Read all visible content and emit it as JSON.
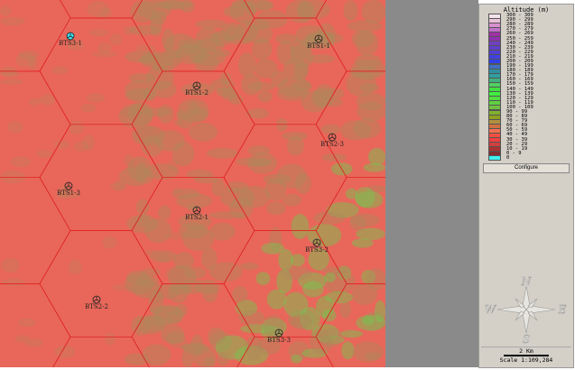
{
  "legend": {
    "title": "Altitude (m)",
    "configure_label": "Configure",
    "entries": [
      {
        "label": "300 - 309",
        "color": "#f3e2ea"
      },
      {
        "label": "290 - 299",
        "color": "#e8c0d8"
      },
      {
        "label": "280 - 289",
        "color": "#d890d0"
      },
      {
        "label": "270 - 279",
        "color": "#c070c8"
      },
      {
        "label": "260 - 269",
        "color": "#a030a8"
      },
      {
        "label": "250 - 259",
        "color": "#9030b0"
      },
      {
        "label": "240 - 249",
        "color": "#7040c0"
      },
      {
        "label": "230 - 239",
        "color": "#6040c8"
      },
      {
        "label": "220 - 229",
        "color": "#5040d0"
      },
      {
        "label": "210 - 219",
        "color": "#4040e0"
      },
      {
        "label": "200 - 209",
        "color": "#3040e8"
      },
      {
        "label": "190 - 199",
        "color": "#4070c0"
      },
      {
        "label": "180 - 189",
        "color": "#3090a0"
      },
      {
        "label": "170 - 179",
        "color": "#30a0a0"
      },
      {
        "label": "160 - 169",
        "color": "#40b080"
      },
      {
        "label": "150 - 159",
        "color": "#50d060"
      },
      {
        "label": "140 - 149",
        "color": "#40e040"
      },
      {
        "label": "130 - 139",
        "color": "#40f040"
      },
      {
        "label": "120 - 129",
        "color": "#50e040"
      },
      {
        "label": "110 - 119",
        "color": "#60d040"
      },
      {
        "label": "100 - 109",
        "color": "#70c040"
      },
      {
        "label": "90 - 99",
        "color": "#80b030"
      },
      {
        "label": "80 - 89",
        "color": "#90a020"
      },
      {
        "label": "70 - 79",
        "color": "#b09040"
      },
      {
        "label": "60 - 69",
        "color": "#d07040"
      },
      {
        "label": "50 - 59",
        "color": "#f07050"
      },
      {
        "label": "40 - 49",
        "color": "#f05040"
      },
      {
        "label": "30 - 39",
        "color": "#f04040"
      },
      {
        "label": "20 - 29",
        "color": "#d04040"
      },
      {
        "label": "10 - 19",
        "color": "#b03030"
      },
      {
        "label": "0 - 9",
        "color": "#803030"
      },
      {
        "label": "0",
        "color": "#40f0f0"
      }
    ]
  },
  "compass": {
    "n": "N",
    "s": "S",
    "e": "E",
    "w": "W"
  },
  "scale": {
    "bar_label": "2 Km",
    "ratio": "Scale 1:109,284"
  },
  "sites": [
    {
      "name": "BTS3-1",
      "highlight": true
    },
    {
      "name": "BTS1-1"
    },
    {
      "name": "BTS1-2"
    },
    {
      "name": "BTS2-3"
    },
    {
      "name": "BTS1-3"
    },
    {
      "name": "BTS2-1"
    },
    {
      "name": "BTS3-2"
    },
    {
      "name": "BTS2-2"
    },
    {
      "name": "BTS3-3"
    }
  ],
  "colors": {
    "hex_grid": "#e02020",
    "terrain_low": "#e8675a",
    "terrain_mid": "#b0885a",
    "terrain_high": "#70c850"
  }
}
